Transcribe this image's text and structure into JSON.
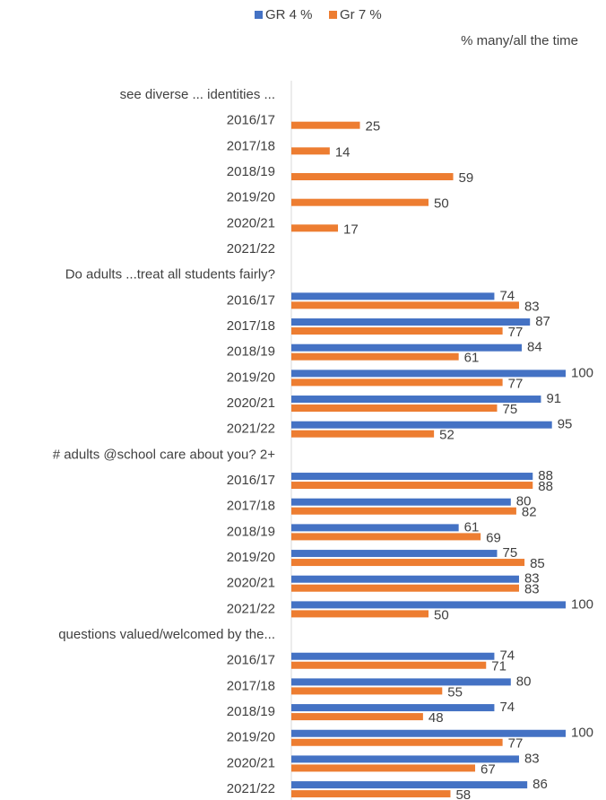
{
  "chart_data": {
    "type": "bar",
    "orientation": "horizontal",
    "subtitle": "% many/all the time",
    "categories": [
      "see diverse ... identities ...",
      "2016/17",
      "2017/18",
      "2018/19",
      "2019/20",
      "2020/21",
      "2021/22",
      "Do adults ...treat all students fairly?",
      "2016/17",
      "2017/18",
      "2018/19",
      "2019/20",
      "2020/21",
      "2021/22",
      "# adults @school care about you? 2+",
      "2016/17",
      "2017/18",
      "2018/19",
      "2019/20",
      "2020/21",
      "2021/22",
      "questions valued/welcomed by the...",
      "2016/17",
      "2017/18",
      "2018/19",
      "2019/20",
      "2020/21",
      "2021/22"
    ],
    "series": [
      {
        "name": "GR 4 %",
        "color": "#4472c4",
        "values": [
          null,
          null,
          null,
          null,
          null,
          null,
          null,
          null,
          74,
          87,
          84,
          100,
          91,
          95,
          null,
          88,
          80,
          61,
          75,
          83,
          100,
          null,
          74,
          80,
          74,
          100,
          83,
          86
        ]
      },
      {
        "name": "Gr 7 %",
        "color": "#ed7d31",
        "values": [
          null,
          25,
          14,
          59,
          50,
          17,
          null,
          null,
          83,
          77,
          61,
          77,
          75,
          52,
          null,
          88,
          82,
          69,
          85,
          83,
          50,
          null,
          71,
          55,
          48,
          77,
          67,
          58
        ]
      }
    ],
    "xlim": [
      0,
      100
    ],
    "legend": "top"
  }
}
